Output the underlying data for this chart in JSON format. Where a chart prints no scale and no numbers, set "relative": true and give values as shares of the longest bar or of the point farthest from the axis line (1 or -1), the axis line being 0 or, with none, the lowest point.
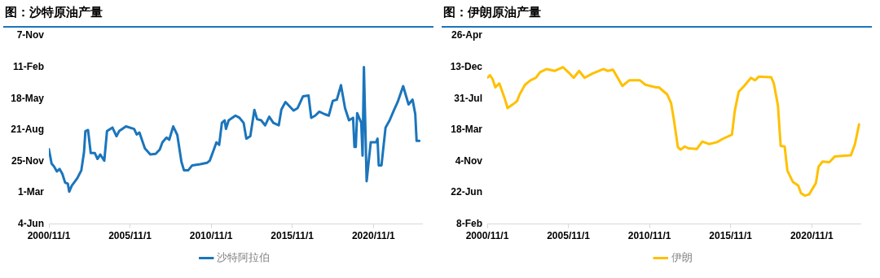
{
  "chart_data": [
    {
      "type": "line",
      "title": "图：沙特原油产量",
      "legend": "bottom",
      "grid": false,
      "marker": "none",
      "line_style": "solid",
      "relative": true,
      "xlim": [
        "2000-11-01",
        "2023-11-01"
      ],
      "xticks": [
        {
          "value": "2000-11-01",
          "label": "2000/11/1"
        },
        {
          "value": "2005-11-01",
          "label": "2005/11/1"
        },
        {
          "value": "2010-11-01",
          "label": "2010/11/1"
        },
        {
          "value": "2015-11-01",
          "label": "2015/11/1"
        },
        {
          "value": "2020-11-01",
          "label": "2020/11/1"
        }
      ],
      "annotations": [
        "4-Jun",
        "1-Mar",
        "25-Nov",
        "21-Aug",
        "18-May",
        "11-Feb",
        "7-Nov"
      ],
      "series": [
        {
          "name": "沙特阿拉伯",
          "color": "#1b75bc",
          "x": [
            "2000-11",
            "2001-01",
            "2001-03",
            "2001-05",
            "2001-07",
            "2001-09",
            "2001-11",
            "2002-01",
            "2002-02",
            "2002-04",
            "2002-08",
            "2002-11",
            "2003-01",
            "2003-02",
            "2003-04",
            "2003-06",
            "2003-09",
            "2003-11",
            "2004-01",
            "2004-04",
            "2004-06",
            "2004-10",
            "2005-01",
            "2005-03",
            "2005-08",
            "2006-02",
            "2006-04",
            "2006-06",
            "2006-10",
            "2007-02",
            "2007-06",
            "2007-09",
            "2007-11",
            "2008-02",
            "2008-04",
            "2008-07",
            "2008-10",
            "2009-01",
            "2009-03",
            "2009-06",
            "2009-09",
            "2010-03",
            "2010-08",
            "2010-10",
            "2011-01",
            "2011-03",
            "2011-05",
            "2011-07",
            "2011-09",
            "2011-10",
            "2011-12",
            "2012-05",
            "2012-08",
            "2012-11",
            "2013-01",
            "2013-04",
            "2013-07",
            "2013-09",
            "2013-12",
            "2014-03",
            "2014-06",
            "2014-09",
            "2015-01",
            "2015-03",
            "2015-06",
            "2015-12",
            "2016-03",
            "2016-07",
            "2016-11",
            "2017-01",
            "2017-04",
            "2017-07",
            "2017-11",
            "2018-02",
            "2018-05",
            "2018-08",
            "2018-11",
            "2019-02",
            "2019-05",
            "2019-08",
            "2019-09",
            "2019-10",
            "2019-11",
            "2020-02",
            "2020-03",
            "2020-04",
            "2020-06",
            "2020-09",
            "2021-01",
            "2021-02",
            "2021-03",
            "2021-05",
            "2021-08",
            "2021-11",
            "2022-02",
            "2022-05",
            "2022-09",
            "2023-01",
            "2023-04",
            "2023-06",
            "2023-07",
            "2023-09"
          ],
          "values": [
            0.477,
            0.385,
            0.365,
            0.335,
            0.351,
            0.319,
            0.264,
            0.257,
            0.206,
            0.245,
            0.291,
            0.342,
            0.459,
            0.592,
            0.599,
            0.452,
            0.452,
            0.415,
            0.443,
            0.404,
            0.592,
            0.615,
            0.56,
            0.592,
            0.622,
            0.606,
            0.571,
            0.583,
            0.482,
            0.443,
            0.447,
            0.475,
            0.521,
            0.551,
            0.537,
            0.622,
            0.567,
            0.397,
            0.342,
            0.342,
            0.374,
            0.381,
            0.39,
            0.404,
            0.475,
            0.521,
            0.505,
            0.645,
            0.661,
            0.606,
            0.661,
            0.691,
            0.677,
            0.645,
            0.544,
            0.56,
            0.727,
            0.668,
            0.661,
            0.629,
            0.684,
            0.645,
            0.629,
            0.73,
            0.778,
            0.723,
            0.739,
            0.814,
            0.819,
            0.677,
            0.691,
            0.716,
            0.7,
            0.691,
            0.785,
            0.793,
            0.885,
            0.739,
            0.661,
            0.677,
            0.491,
            0.491,
            0.707,
            0.645,
            0.436,
            1,
            0.273,
            0.521,
            0.521,
            0.544,
            0.374,
            0.374,
            0.615,
            0.661,
            0.723,
            0.778,
            0.879,
            0.762,
            0.793,
            0.7,
            0.53,
            0.53
          ]
        }
      ]
    },
    {
      "type": "line",
      "title": "图：伊朗原油产量",
      "legend": "bottom",
      "grid": false,
      "marker": "none",
      "line_style": "solid",
      "relative": true,
      "xlim": [
        "2000-11-01",
        "2023-11-01"
      ],
      "xticks": [
        {
          "value": "2000-11-01",
          "label": "2000/11/1"
        },
        {
          "value": "2005-11-01",
          "label": "2005/11/1"
        },
        {
          "value": "2010-11-01",
          "label": "2010/11/1"
        },
        {
          "value": "2015-11-01",
          "label": "2015/11/1"
        },
        {
          "value": "2020-11-01",
          "label": "2020/11/1"
        }
      ],
      "annotations": [
        "8-Feb",
        "22-Jun",
        "4-Nov",
        "18-Mar",
        "31-Jul",
        "13-Dec",
        "26-Apr"
      ],
      "series": [
        {
          "name": "伊朗",
          "color": "#ffc000",
          "x": [
            "2000-11",
            "2001-01",
            "2001-03",
            "2001-05",
            "2001-08",
            "2001-12",
            "2002-02",
            "2002-06",
            "2002-09",
            "2002-11",
            "2003-03",
            "2003-07",
            "2003-11",
            "2004-02",
            "2004-07",
            "2005-01",
            "2005-07",
            "2005-11",
            "2006-03",
            "2006-07",
            "2006-11",
            "2007-05",
            "2008-01",
            "2008-04",
            "2008-08",
            "2008-12",
            "2009-03",
            "2009-08",
            "2010-04",
            "2010-08",
            "2011-04",
            "2011-06",
            "2011-12",
            "2012-03",
            "2012-05",
            "2012-08",
            "2012-10",
            "2013-01",
            "2013-04",
            "2013-10",
            "2014-02",
            "2014-07",
            "2015-01",
            "2015-05",
            "2015-12",
            "2016-02",
            "2016-05",
            "2016-09",
            "2017-02",
            "2017-05",
            "2017-08",
            "2018-05",
            "2018-07",
            "2018-10",
            "2018-12",
            "2019-03",
            "2019-05",
            "2019-09",
            "2020-01",
            "2020-03",
            "2020-06",
            "2020-09",
            "2021-02",
            "2021-04",
            "2021-07",
            "2021-12",
            "2022-04",
            "2022-10",
            "2023-04",
            "2023-07",
            "2023-10"
          ],
          "values": [
            0.932,
            0.948,
            0.924,
            0.871,
            0.896,
            0.799,
            0.739,
            0.763,
            0.783,
            0.827,
            0.888,
            0.916,
            0.932,
            0.968,
            0.988,
            0.976,
            1,
            0.968,
            0.932,
            0.976,
            0.932,
            0.96,
            0.988,
            0.976,
            0.984,
            0.924,
            0.88,
            0.916,
            0.916,
            0.888,
            0.871,
            0.871,
            0.827,
            0.771,
            0.667,
            0.49,
            0.474,
            0.494,
            0.482,
            0.478,
            0.526,
            0.51,
            0.522,
            0.542,
            0.57,
            0.719,
            0.843,
            0.88,
            0.932,
            0.916,
            0.94,
            0.936,
            0.896,
            0.755,
            0.498,
            0.494,
            0.341,
            0.269,
            0.245,
            0.197,
            0.181,
            0.189,
            0.261,
            0.365,
            0.398,
            0.394,
            0.43,
            0.434,
            0.438,
            0.51,
            0.635
          ]
        }
      ]
    }
  ]
}
